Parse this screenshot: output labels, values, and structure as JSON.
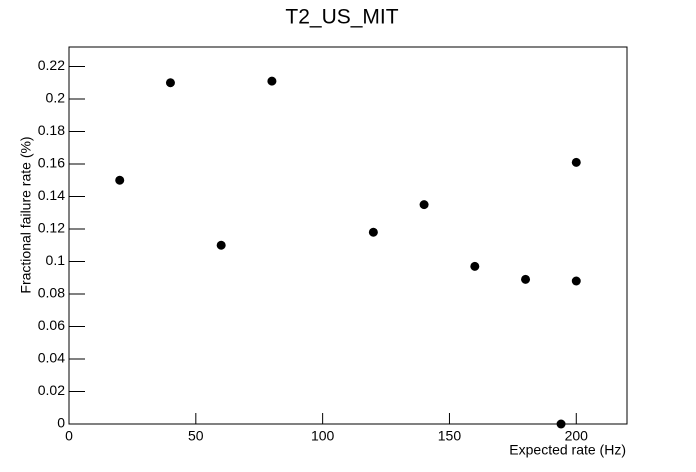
{
  "chart_data": {
    "type": "scatter",
    "title": "T2_US_MIT",
    "x_label": "Expected rate (Hz)",
    "y_label": "Fractional failure rate (%)",
    "x": [
      20,
      40,
      60,
      80,
      120,
      140,
      160,
      180,
      194,
      200,
      200
    ],
    "values": [
      0.15,
      0.21,
      0.11,
      0.211,
      0.118,
      0.135,
      0.097,
      0.089,
      0,
      0.161,
      0.088
    ],
    "color": "#000000",
    "xlim": [
      0,
      220
    ],
    "ylim": [
      0,
      0.232
    ],
    "xticks": [
      0,
      50,
      100,
      150,
      200
    ],
    "yticks": [
      0,
      0.02,
      0.04,
      0.06,
      0.08,
      0.1,
      0.12,
      0.14,
      0.16,
      0.18,
      0.2,
      0.22
    ]
  }
}
